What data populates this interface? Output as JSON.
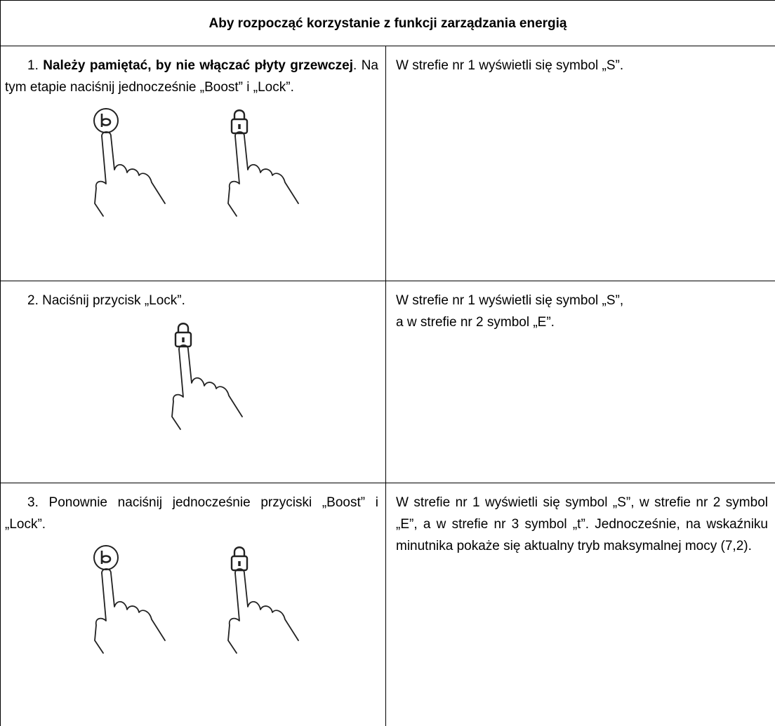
{
  "table": {
    "header": "Aby rozpocząć korzystanie z funkcji zarządzania energią",
    "rows": [
      {
        "step": {
          "number": "1.",
          "bold": "Należy pamiętać, by nie włączać płyty grzewczej",
          "rest": ". Na tym etapie naciśnij jednocześnie „Boost” i „Lock”."
        },
        "result": [
          "W strefie nr 1 wyświetli się symbol „S”."
        ]
      },
      {
        "step": {
          "number": "2.",
          "rest": "Naciśnij przycisk „Lock”."
        },
        "result": [
          "W strefie nr 1 wyświetli się symbol „S”,",
          "a w strefie nr 2 symbol „E”."
        ]
      },
      {
        "step": {
          "number": "3.",
          "rest": "Ponownie naciśnij jednocześnie przyciski „Boost” i „Lock”."
        },
        "result": [
          "W strefie nr 1 wyświetli się symbol „S”, w strefie nr 2 symbol „E”, a w strefie nr 3 symbol „t”. Jednocześnie, na wskaźniku minutnika pokaże się aktualny tryb maksymalnej mocy (7,2)."
        ]
      }
    ]
  }
}
